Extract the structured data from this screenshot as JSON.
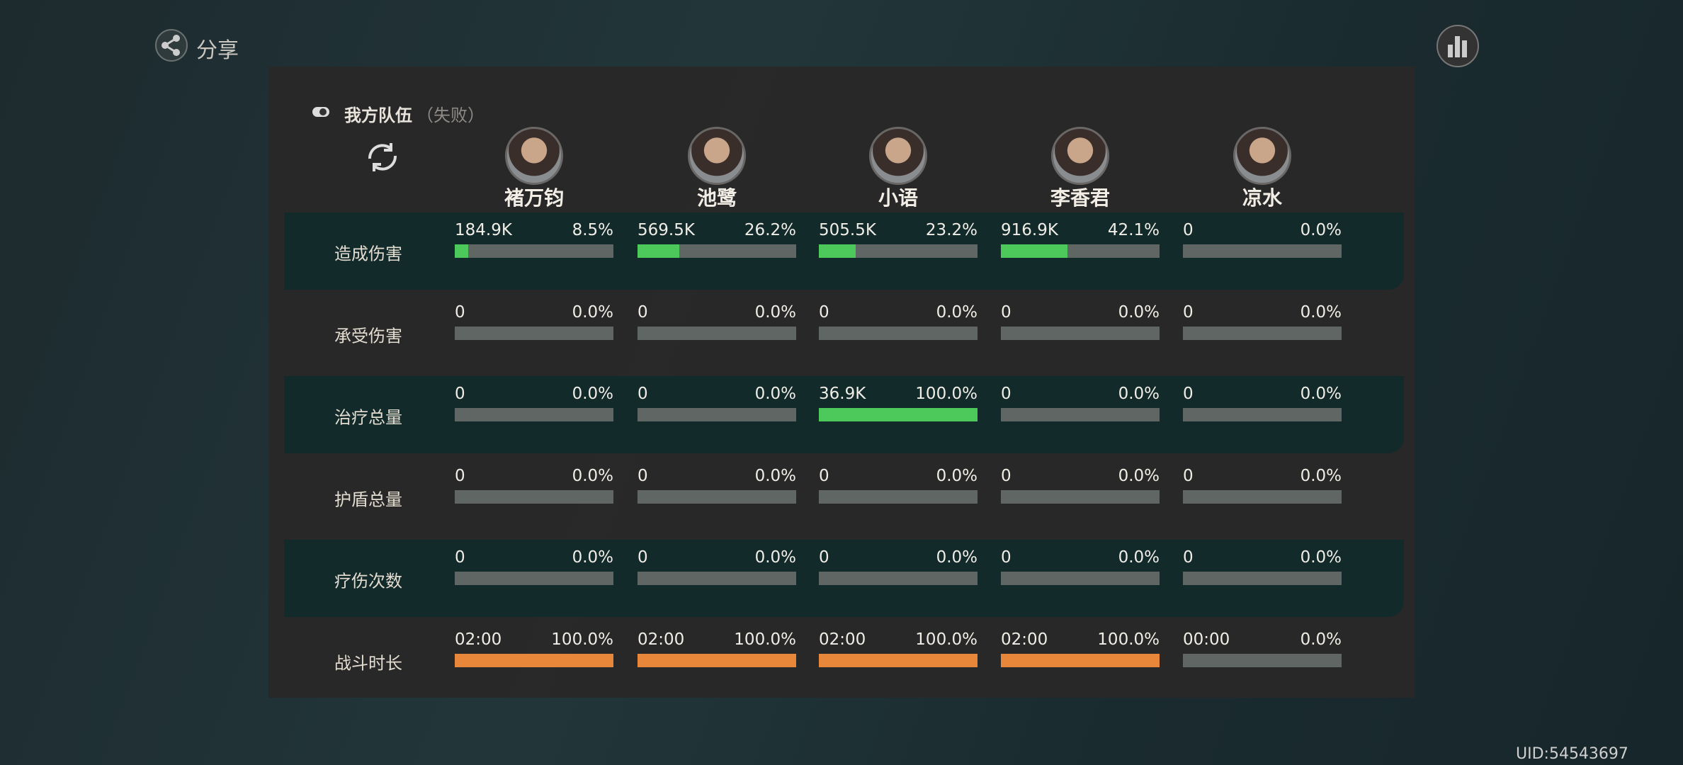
{
  "share": "分享",
  "team": {
    "title": "我方队伍",
    "status": "（失败）"
  },
  "characters": [
    "褚万钧",
    "池鹭",
    "小语",
    "李香君",
    "凉水"
  ],
  "rows": [
    {
      "label": "造成伤害",
      "color": "#4cc95a",
      "cells": [
        {
          "value": "184.9K",
          "share": {
            "value": 8.5,
            "label": "8.5%"
          }
        },
        {
          "value": "569.5K",
          "share": {
            "value": 26.2,
            "label": "26.2%"
          }
        },
        {
          "value": "505.5K",
          "share": {
            "value": 23.2,
            "label": "23.2%"
          }
        },
        {
          "value": "916.9K",
          "share": {
            "value": 42.1,
            "label": "42.1%"
          }
        },
        {
          "value": "0",
          "share": {
            "value": 0,
            "label": "0.0%"
          }
        }
      ]
    },
    {
      "label": "承受伤害",
      "color": "#4cc95a",
      "cells": [
        {
          "value": "0",
          "share": {
            "value": 0,
            "label": "0.0%"
          }
        },
        {
          "value": "0",
          "share": {
            "value": 0,
            "label": "0.0%"
          }
        },
        {
          "value": "0",
          "share": {
            "value": 0,
            "label": "0.0%"
          }
        },
        {
          "value": "0",
          "share": {
            "value": 0,
            "label": "0.0%"
          }
        },
        {
          "value": "0",
          "share": {
            "value": 0,
            "label": "0.0%"
          }
        }
      ]
    },
    {
      "label": "治疗总量",
      "color": "#4cc95a",
      "cells": [
        {
          "value": "0",
          "share": {
            "value": 0,
            "label": "0.0%"
          }
        },
        {
          "value": "0",
          "share": {
            "value": 0,
            "label": "0.0%"
          }
        },
        {
          "value": "36.9K",
          "share": {
            "value": 100,
            "label": "100.0%"
          }
        },
        {
          "value": "0",
          "share": {
            "value": 0,
            "label": "0.0%"
          }
        },
        {
          "value": "0",
          "share": {
            "value": 0,
            "label": "0.0%"
          }
        }
      ]
    },
    {
      "label": "护盾总量",
      "color": "#4cc95a",
      "cells": [
        {
          "value": "0",
          "share": {
            "value": 0,
            "label": "0.0%"
          }
        },
        {
          "value": "0",
          "share": {
            "value": 0,
            "label": "0.0%"
          }
        },
        {
          "value": "0",
          "share": {
            "value": 0,
            "label": "0.0%"
          }
        },
        {
          "value": "0",
          "share": {
            "value": 0,
            "label": "0.0%"
          }
        },
        {
          "value": "0",
          "share": {
            "value": 0,
            "label": "0.0%"
          }
        }
      ]
    },
    {
      "label": "疗伤次数",
      "color": "#4cc95a",
      "cells": [
        {
          "value": "0",
          "share": {
            "value": 0,
            "label": "0.0%"
          }
        },
        {
          "value": "0",
          "share": {
            "value": 0,
            "label": "0.0%"
          }
        },
        {
          "value": "0",
          "share": {
            "value": 0,
            "label": "0.0%"
          }
        },
        {
          "value": "0",
          "share": {
            "value": 0,
            "label": "0.0%"
          }
        },
        {
          "value": "0",
          "share": {
            "value": 0,
            "label": "0.0%"
          }
        }
      ]
    },
    {
      "label": "战斗时长",
      "color": "#e8873a",
      "cells": [
        {
          "value": "02:00",
          "share": {
            "value": 100,
            "label": "100.0%"
          }
        },
        {
          "value": "02:00",
          "share": {
            "value": 100,
            "label": "100.0%"
          }
        },
        {
          "value": "02:00",
          "share": {
            "value": 100,
            "label": "100.0%"
          }
        },
        {
          "value": "02:00",
          "share": {
            "value": 100,
            "label": "100.0%"
          }
        },
        {
          "value": "00:00",
          "share": {
            "value": 0,
            "label": "0.0%"
          }
        }
      ]
    }
  ],
  "uid": "UID:54543697"
}
